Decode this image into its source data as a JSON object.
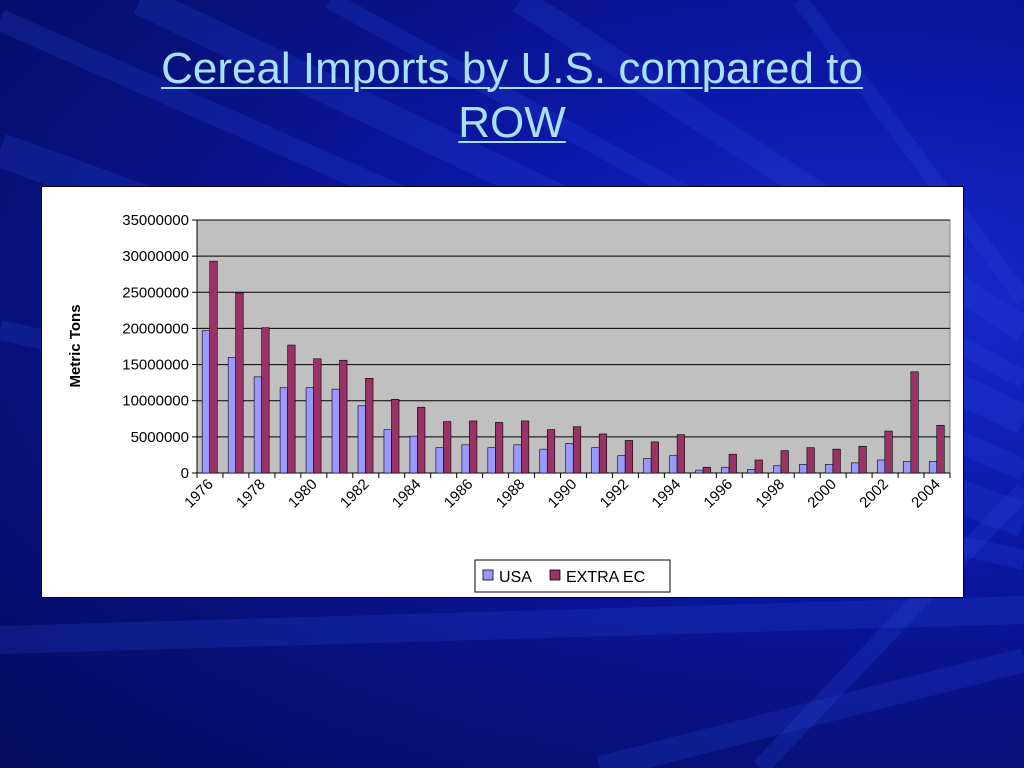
{
  "slide": {
    "title": "Cereal Imports by U.S. compared to ROW"
  },
  "chart_data": {
    "type": "bar",
    "ylabel": "Metric Tons",
    "xlabel": "",
    "ylim": [
      0,
      35000000
    ],
    "yticks": [
      0,
      5000000,
      10000000,
      15000000,
      20000000,
      25000000,
      30000000,
      35000000
    ],
    "grid": true,
    "legend": "bottom",
    "categories": [
      "1976",
      "1977",
      "1978",
      "1979",
      "1980",
      "1981",
      "1982",
      "1983",
      "1984",
      "1985",
      "1986",
      "1987",
      "1988",
      "1989",
      "1990",
      "1991",
      "1992",
      "1993",
      "1994",
      "1995",
      "1996",
      "1997",
      "1998",
      "1999",
      "2000",
      "2001",
      "2002",
      "2003",
      "2004"
    ],
    "category_tick_labels": [
      "1976",
      "1978",
      "1980",
      "1982",
      "1984",
      "1986",
      "1988",
      "1990",
      "1992",
      "1994",
      "1996",
      "1998",
      "2000",
      "2002",
      "2004"
    ],
    "series": [
      {
        "name": "USA",
        "color": "#9999ff",
        "values": [
          19700000,
          16000000,
          13300000,
          11800000,
          11800000,
          11600000,
          9300000,
          6000000,
          5100000,
          3500000,
          3900000,
          3500000,
          3900000,
          3300000,
          4100000,
          3500000,
          2400000,
          2000000,
          2400000,
          400000,
          800000,
          500000,
          1000000,
          1200000,
          1200000,
          1400000,
          1800000,
          1600000,
          1600000
        ]
      },
      {
        "name": "EXTRA EC",
        "color": "#993366",
        "values": [
          29300000,
          24900000,
          20100000,
          17700000,
          15800000,
          15600000,
          13100000,
          10200000,
          9100000,
          7100000,
          7200000,
          7000000,
          7200000,
          6000000,
          6400000,
          5400000,
          4500000,
          4300000,
          5300000,
          800000,
          2600000,
          1800000,
          3100000,
          3500000,
          3300000,
          3700000,
          5800000,
          14000000,
          6600000
        ]
      }
    ],
    "plot_background": "#c0c0c0"
  }
}
